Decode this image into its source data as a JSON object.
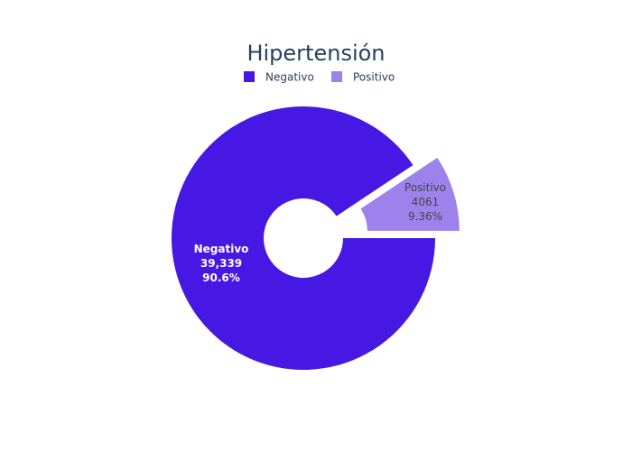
{
  "chart_data": {
    "type": "pie",
    "hole": true,
    "title": "Hipertensión",
    "legend_position": "top-center",
    "slices": [
      {
        "label": "Negativo",
        "value": 39339,
        "value_text": "39,339",
        "percent_text": "90.6%",
        "color": "#4717E3",
        "pulled": false
      },
      {
        "label": "Positivo",
        "value": 4061,
        "value_text": "4061",
        "percent_text": "9.36%",
        "color": "#9E82EB",
        "pulled": true
      }
    ]
  }
}
